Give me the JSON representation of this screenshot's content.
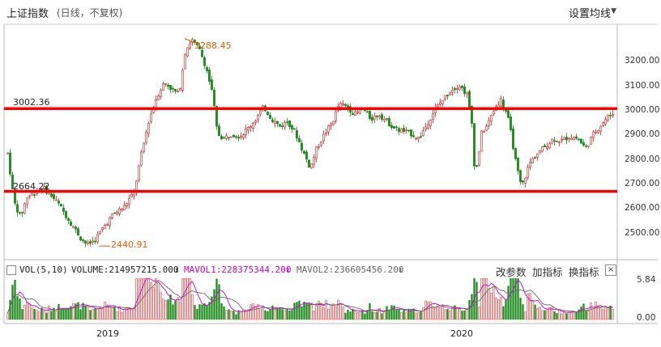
{
  "header": {
    "title": "上证指数",
    "subtitle": "(日线，不复权)",
    "ma_menu_label": "设置均线"
  },
  "price_axis": {
    "ticks": [
      "3200.00",
      "3100.00",
      "3000.00",
      "2900.00",
      "2800.00",
      "2700.00",
      "2600.00",
      "2500.00"
    ],
    "tick_values": [
      3200,
      3100,
      3000,
      2900,
      2800,
      2700,
      2600,
      2500
    ],
    "range": [
      2420,
      3340
    ]
  },
  "levels": [
    {
      "label": "3002.36",
      "value": 3002.36,
      "color": "#ff0000"
    },
    {
      "label": "2664.22",
      "value": 2664.22,
      "color": "#ff0000"
    }
  ],
  "annotations": {
    "high": {
      "label": "3288.45",
      "value": 3288.45
    },
    "low": {
      "label": "2440.91",
      "value": 2440.91
    }
  },
  "volume_bar": {
    "indicator": "VOL(5,10)",
    "volume": "VOLUME:214957215.000",
    "mavol1": "MAVOL1:228375344.200",
    "mavol2": "MAVOL2:236605456.200",
    "arrow": "↓",
    "tools": [
      "改参数",
      "加指标",
      "换指标"
    ],
    "close": "×"
  },
  "volume_axis": {
    "ticks": [
      "5.84",
      "0.00"
    ],
    "range": [
      0,
      5.84
    ]
  },
  "x_axis": {
    "labels": [
      "2019",
      "2020"
    ]
  },
  "colors": {
    "up": "#e02020",
    "down": "#1a8a1a",
    "mavol1": "#d000d0",
    "mavol2": "#666666",
    "level": "#ff0000",
    "annotation": "#e06010"
  },
  "icons": {
    "caret": "caret-down-icon",
    "close": "close-icon",
    "arrow": "arrow-down-icon"
  }
}
